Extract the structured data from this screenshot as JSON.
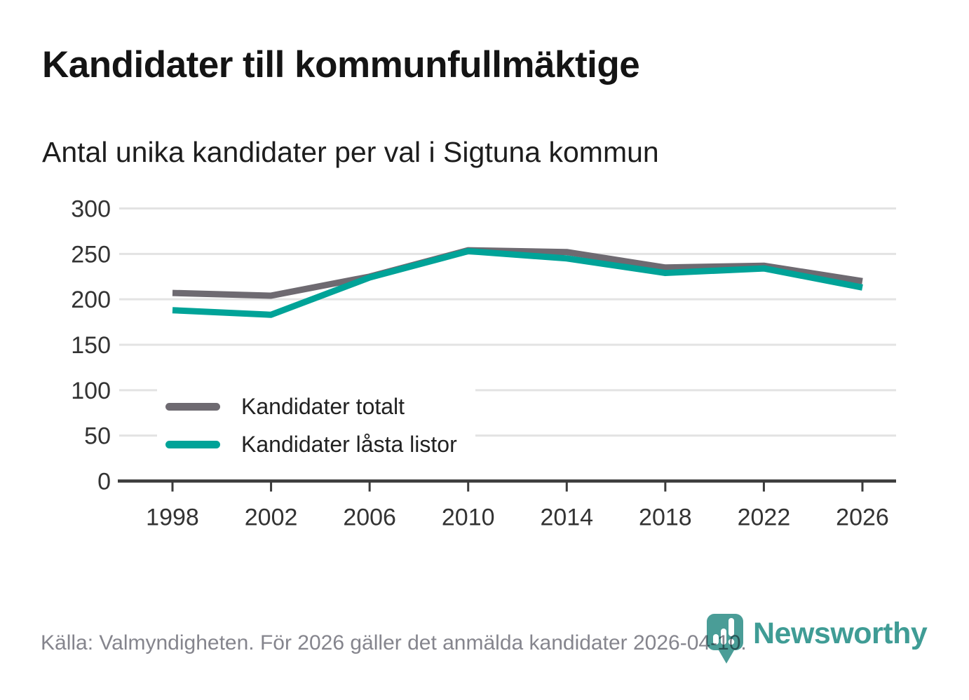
{
  "header": {
    "title": "Kandidater till kommunfullmäktige",
    "subtitle": "Antal unika kandidater per val i Sigtuna kommun"
  },
  "chart_data": {
    "type": "line",
    "x": [
      1998,
      2002,
      2006,
      2010,
      2014,
      2018,
      2022,
      2026
    ],
    "series": [
      {
        "name": "Kandidater totalt",
        "color": "#6e6a71",
        "values": [
          207,
          204,
          225,
          254,
          252,
          235,
          237,
          220
        ]
      },
      {
        "name": "Kandidater låsta listor",
        "color": "#00a398",
        "values": [
          188,
          183,
          224,
          253,
          245,
          229,
          234,
          213
        ]
      }
    ],
    "ylim": [
      0,
      300
    ],
    "yticks": [
      0,
      50,
      100,
      150,
      200,
      250,
      300
    ],
    "grid": true,
    "legend_position": "inside-left",
    "xlabel": "",
    "ylabel": ""
  },
  "footer": {
    "source": "Källa: Valmyndigheten. För 2026 gäller det anmälda kandidater 2026-04-10.",
    "logo_text": "Newsworthy"
  },
  "colors": {
    "accent_teal": "#00a398",
    "line_gray": "#6e6a71",
    "logo_teal": "#3f9c95",
    "logo_icon_teal": "#4a9d97",
    "grid": "#e3e3e3",
    "axis": "#3b3b3b",
    "tick_label": "#333333",
    "footer_text": "#85858d"
  }
}
